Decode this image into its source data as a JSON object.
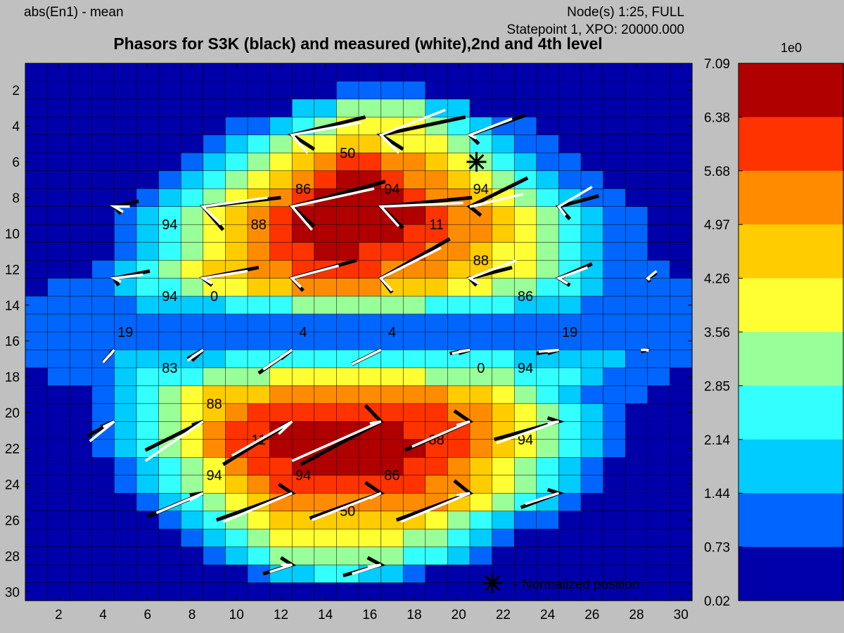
{
  "header": {
    "left": "abs(En1) - mean",
    "right_line1": "Node(s) 1:25, FULL",
    "right_line2": "Statepoint 1, XPO: 20000.000",
    "title": "Phasors for S3K (black) and measured (white),2nd and 4th level"
  },
  "legend": {
    "marker_label": "- Normalized position",
    "marker_x": 20.8,
    "marker_y": 6
  },
  "colorbar": {
    "exponent_label": "1e0",
    "tick_labels": [
      "7.09",
      "6.38",
      "5.68",
      "4.97",
      "4.26",
      "3.56",
      "2.85",
      "2.14",
      "1.44",
      "0.73",
      "0.02"
    ],
    "colors": [
      "#b00000",
      "#ff3300",
      "#ff8c00",
      "#ffcc00",
      "#ffff33",
      "#99ff99",
      "#33ffff",
      "#00ccff",
      "#0066ff",
      "#0000aa"
    ]
  },
  "chart_data": {
    "type": "heatmap",
    "title": "Phasors for S3K (black) and measured (white),2nd and 4th level",
    "xlim": [
      0.5,
      30.5
    ],
    "ylim": [
      30.5,
      0.5
    ],
    "xticks": [
      2,
      4,
      6,
      8,
      10,
      12,
      14,
      16,
      18,
      20,
      22,
      24,
      26,
      28,
      30
    ],
    "yticks": [
      2,
      4,
      6,
      8,
      10,
      12,
      14,
      16,
      18,
      20,
      22,
      24,
      26,
      28,
      30
    ],
    "value_range": [
      0.02,
      7.09
    ],
    "rows": [
      "000000000000000000000000000000",
      "000000000000001111000000000000",
      "000000000000224444220000000000",
      "000000000112345555432110000000",
      "000000001234556655543211000000",
      "000000012345678877654321100000",
      "000000123456789987765432110000",
      "000001234567899998776543211000",
      "000012345678999999877654321100",
      "000012345678999998877654321100",
      "000012345678899888776554321100",
      "000123456677888877766554321110",
      "011123345566777766655443321111",
      "111112222333444444333322211111",
      "111111111111111111111111111111",
      "111111111111111111111111111111",
      "111122222333333333333322222111",
      "011123334445555555444433321110",
      "000123456667777777766543211100",
      "000123456788888888877654321000",
      "000123457889999998887654321000",
      "000123457889999999887654321000",
      "000012345788999998876543210000",
      "000012345678888888776543210000",
      "000001234567777777765432100000",
      "000000123456666666543211000000",
      "000000012345555554432100000000",
      "000000001234444443321000000000",
      "000000000012233221000000000000",
      "000000000000000000000000000000"
    ],
    "labels": [
      {
        "x": 15,
        "y": 5.5,
        "text": "50"
      },
      {
        "x": 13,
        "y": 7.5,
        "text": "86"
      },
      {
        "x": 17,
        "y": 7.5,
        "text": "94"
      },
      {
        "x": 21,
        "y": 7.5,
        "text": "94"
      },
      {
        "x": 7,
        "y": 9.5,
        "text": "94"
      },
      {
        "x": 11,
        "y": 9.5,
        "text": "88"
      },
      {
        "x": 19,
        "y": 9.5,
        "text": "11"
      },
      {
        "x": 21,
        "y": 11.5,
        "text": "88"
      },
      {
        "x": 7,
        "y": 13.5,
        "text": "94"
      },
      {
        "x": 9,
        "y": 13.5,
        "text": "0"
      },
      {
        "x": 23,
        "y": 13.5,
        "text": "86"
      },
      {
        "x": 5,
        "y": 15.5,
        "text": "19"
      },
      {
        "x": 13,
        "y": 15.5,
        "text": "4"
      },
      {
        "x": 17,
        "y": 15.5,
        "text": "4"
      },
      {
        "x": 25,
        "y": 15.5,
        "text": "19"
      },
      {
        "x": 7,
        "y": 17.5,
        "text": "83"
      },
      {
        "x": 21,
        "y": 17.5,
        "text": "0"
      },
      {
        "x": 23,
        "y": 17.5,
        "text": "94"
      },
      {
        "x": 9,
        "y": 19.5,
        "text": "88"
      },
      {
        "x": 11,
        "y": 21.5,
        "text": "11"
      },
      {
        "x": 19,
        "y": 21.5,
        "text": "88"
      },
      {
        "x": 23,
        "y": 21.5,
        "text": "94"
      },
      {
        "x": 9,
        "y": 23.5,
        "text": "94"
      },
      {
        "x": 13,
        "y": 23.5,
        "text": "94"
      },
      {
        "x": 17,
        "y": 23.5,
        "text": "86"
      },
      {
        "x": 15,
        "y": 25.5,
        "text": "50"
      }
    ],
    "phasors": [
      {
        "x": 12.5,
        "y": 4.5,
        "b": [
          13.5,
          5.3,
          15.8,
          3.5
        ],
        "w": [
          13.2,
          5.5,
          15.6,
          3.8
        ]
      },
      {
        "x": 16.5,
        "y": 4.5,
        "b": [
          17.5,
          5.3,
          20.3,
          3.5
        ],
        "w": [
          17.3,
          5.5,
          19.4,
          3.1
        ]
      },
      {
        "x": 20.5,
        "y": 4.5,
        "b": [
          20.9,
          5.0,
          23.0,
          3.4
        ],
        "w": [
          20.8,
          4.7,
          22.4,
          3.6
        ]
      },
      {
        "x": 4.5,
        "y": 8.5,
        "b": [
          4.8,
          8.9,
          5.6,
          8.2
        ],
        "w": [
          4.9,
          8.8,
          5.2,
          8.5
        ]
      },
      {
        "x": 8.5,
        "y": 8.5,
        "b": [
          9.4,
          9.8,
          12.0,
          8.0
        ],
        "w": [
          9.3,
          9.5,
          11.4,
          8.0
        ]
      },
      {
        "x": 12.5,
        "y": 8.5,
        "b": [
          13.5,
          9.6,
          16.7,
          7.1
        ],
        "w": [
          13.4,
          9.8,
          16.2,
          7.5
        ]
      },
      {
        "x": 16.5,
        "y": 8.5,
        "b": [
          17.5,
          9.7,
          20.6,
          8.0
        ],
        "w": [
          17.3,
          9.6,
          20.2,
          8.3
        ]
      },
      {
        "x": 20.5,
        "y": 8.5,
        "b": [
          21.0,
          9.0,
          23.1,
          6.9
        ],
        "w": [
          21.0,
          8.4,
          22.9,
          7.8
        ]
      },
      {
        "x": 24.5,
        "y": 8.5,
        "b": [
          25.0,
          9.2,
          26.3,
          7.9
        ],
        "w": [
          24.8,
          9.0,
          26.0,
          7.4
        ]
      },
      {
        "x": 4.5,
        "y": 12.5,
        "b": [
          4.7,
          12.9,
          6.1,
          12.1
        ],
        "w": [
          4.8,
          12.7,
          5.8,
          12.3
        ]
      },
      {
        "x": 8.5,
        "y": 12.5,
        "b": [
          8.9,
          12.9,
          11.0,
          11.9
        ],
        "w": [
          8.9,
          12.8,
          10.5,
          12.1
        ]
      },
      {
        "x": 12.5,
        "y": 12.5,
        "b": [
          13.0,
          13.2,
          15.4,
          11.5
        ],
        "w": [
          12.9,
          13.0,
          14.6,
          11.8
        ]
      },
      {
        "x": 16.5,
        "y": 12.5,
        "b": [
          17.0,
          13.3,
          19.6,
          10.3
        ],
        "w": [
          17.0,
          13.2,
          19.2,
          10.8
        ]
      },
      {
        "x": 20.5,
        "y": 12.5,
        "b": [
          20.8,
          12.9,
          22.4,
          11.9
        ],
        "w": [
          20.9,
          12.8,
          22.6,
          11.5
        ]
      },
      {
        "x": 24.5,
        "y": 12.5,
        "b": [
          25.0,
          12.9,
          26.0,
          11.7
        ],
        "w": [
          24.9,
          12.8,
          25.8,
          11.9
        ]
      },
      {
        "x": 28.5,
        "y": 12.5,
        "b": [
          28.6,
          12.7,
          28.9,
          12.2
        ],
        "w": [
          28.6,
          12.6,
          28.9,
          12.1
        ]
      },
      {
        "x": 4.5,
        "y": 16.5,
        "b": [
          4.0,
          17.2,
          4.3,
          16.7
        ],
        "w": [
          4.0,
          17.2,
          4.3,
          16.8
        ]
      },
      {
        "x": 8.5,
        "y": 16.5,
        "b": [
          8.0,
          17.1,
          7.8,
          17.0
        ],
        "w": [
          8.0,
          16.9,
          7.8,
          17.1
        ]
      },
      {
        "x": 12.5,
        "y": 16.5,
        "b": [
          12.0,
          17.0,
          11.0,
          17.8
        ],
        "w": [
          12.0,
          16.9,
          11.2,
          17.6
        ]
      },
      {
        "x": 16.5,
        "y": 16.5,
        "b": [
          16.0,
          16.8,
          15.2,
          17.3
        ],
        "w": [
          16.0,
          16.8,
          15.2,
          17.3
        ]
      },
      {
        "x": 20.5,
        "y": 16.5,
        "b": [
          20.0,
          16.7,
          19.6,
          16.7
        ],
        "w": [
          20.0,
          16.6,
          19.7,
          16.7
        ]
      },
      {
        "x": 24.5,
        "y": 16.5,
        "b": [
          24.0,
          16.7,
          23.5,
          16.7
        ],
        "w": [
          24.0,
          16.6,
          23.6,
          16.6
        ]
      },
      {
        "x": 28.5,
        "y": 16.5,
        "b": [
          28.5,
          16.6,
          28.2,
          16.6
        ],
        "w": [
          28.5,
          16.6,
          28.2,
          16.5
        ]
      },
      {
        "x": 4.5,
        "y": 20.5,
        "b": [
          3.9,
          20.8,
          3.3,
          21.3
        ],
        "w": [
          4.0,
          20.8,
          3.4,
          21.6
        ]
      },
      {
        "x": 8.5,
        "y": 20.5,
        "b": [
          8.0,
          20.7,
          5.9,
          22.1
        ],
        "w": [
          7.9,
          21.0,
          5.9,
          22.7
        ]
      },
      {
        "x": 12.5,
        "y": 20.5,
        "b": [
          12.0,
          20.8,
          9.4,
          22.9
        ],
        "w": [
          11.9,
          21.2,
          9.8,
          22.4
        ]
      },
      {
        "x": 16.5,
        "y": 20.5,
        "b": [
          15.8,
          19.6,
          12.9,
          22.9
        ],
        "w": [
          16.0,
          20.6,
          12.5,
          22.7
        ]
      },
      {
        "x": 20.5,
        "y": 20.5,
        "b": [
          19.8,
          19.9,
          17.6,
          22.1
        ],
        "w": [
          19.9,
          20.7,
          17.9,
          21.9
        ]
      },
      {
        "x": 24.5,
        "y": 20.5,
        "b": [
          24.0,
          20.3,
          21.6,
          21.5
        ],
        "w": [
          24.0,
          20.6,
          21.7,
          21.7
        ]
      },
      {
        "x": 8.5,
        "y": 24.5,
        "b": [
          7.9,
          24.6,
          6.0,
          25.8
        ],
        "w": [
          7.9,
          24.9,
          6.4,
          25.6
        ]
      },
      {
        "x": 12.5,
        "y": 24.5,
        "b": [
          11.9,
          24.0,
          9.1,
          26.0
        ],
        "w": [
          11.9,
          24.8,
          9.4,
          26.1
        ]
      },
      {
        "x": 16.5,
        "y": 24.5,
        "b": [
          15.8,
          23.9,
          13.3,
          25.9
        ],
        "w": [
          16.0,
          24.8,
          13.4,
          26.0
        ]
      },
      {
        "x": 20.5,
        "y": 24.5,
        "b": [
          19.8,
          23.8,
          17.2,
          26.0
        ],
        "w": [
          19.9,
          24.6,
          17.4,
          26.1
        ]
      },
      {
        "x": 24.5,
        "y": 24.5,
        "b": [
          24.0,
          24.3,
          22.8,
          25.3
        ],
        "w": [
          24.0,
          24.7,
          23.0,
          25.1
        ]
      },
      {
        "x": 12.5,
        "y": 28.5,
        "b": [
          12.0,
          28.1,
          11.2,
          29.0
        ],
        "w": [
          12.0,
          28.5,
          11.5,
          28.9
        ]
      },
      {
        "x": 16.5,
        "y": 28.5,
        "b": [
          15.9,
          28.1,
          14.8,
          29.1
        ],
        "w": [
          15.9,
          28.6,
          15.2,
          29.0
        ]
      }
    ]
  }
}
